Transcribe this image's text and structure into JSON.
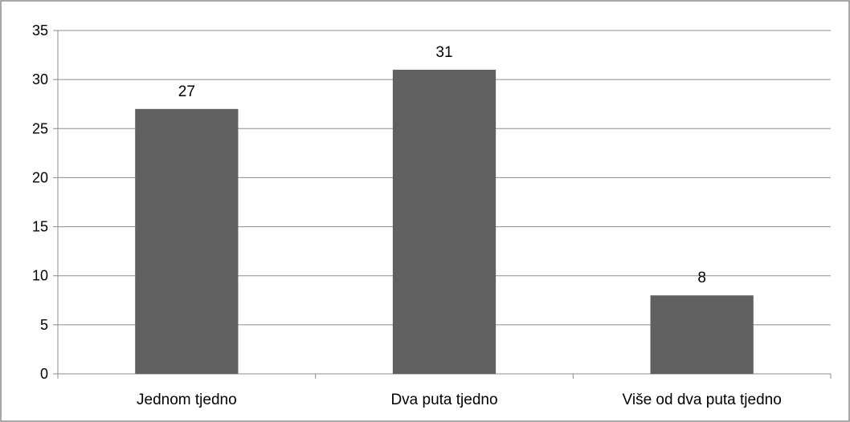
{
  "chart_data": {
    "type": "bar",
    "categories": [
      "Jednom tjedno",
      "Dva puta tjedno",
      "Više od dva puta tjedno"
    ],
    "values": [
      27,
      31,
      8
    ],
    "data_labels": [
      "27",
      "31",
      "8"
    ],
    "title": "",
    "xlabel": "",
    "ylabel": "",
    "ylim": [
      0,
      35
    ],
    "yticks": [
      0,
      5,
      10,
      15,
      20,
      25,
      30,
      35
    ],
    "grid": true,
    "legend": "none",
    "bar_color": "#606060",
    "grid_color": "#8c8c8c",
    "border_color": "#8c8c8c"
  }
}
